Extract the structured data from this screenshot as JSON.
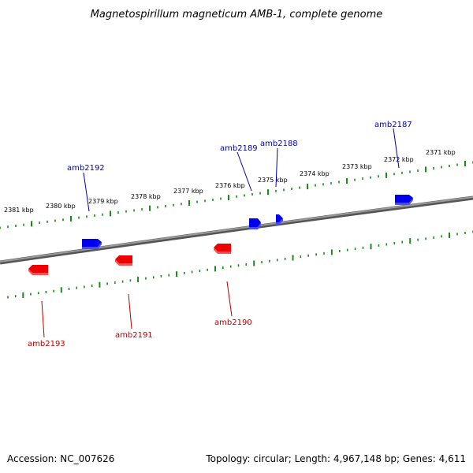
{
  "title": "Magnetospirillum magneticum AMB-1, complete genome",
  "footer": {
    "accession": "Accession: NC_007626",
    "summary": "Topology: circular; Length: 4,967,148 bp; Genes: 4,611"
  },
  "colors": {
    "text": "#000000",
    "backbone": "#808080",
    "tick": "#1a8a1a",
    "forward_gene": "#0000ee",
    "reverse_gene": "#ee0000",
    "forward_label": "#0000aa",
    "reverse_label": "#bb0000"
  },
  "scale_labels": [
    "2381 kbp",
    "2380 kbp",
    "2379 kbp",
    "2378 kbp",
    "2377 kbp",
    "2376 kbp",
    "2375 kbp",
    "2374 kbp",
    "2373 kbp",
    "2372 kbp",
    "2371 kbp"
  ],
  "genes": {
    "forward": [
      {
        "id": "amb2192",
        "strand": "forward"
      },
      {
        "id": "amb2189",
        "strand": "forward"
      },
      {
        "id": "amb2188",
        "strand": "forward"
      },
      {
        "id": "amb2187",
        "strand": "forward"
      }
    ],
    "reverse": [
      {
        "id": "amb2193",
        "strand": "reverse"
      },
      {
        "id": "amb2191",
        "strand": "reverse"
      },
      {
        "id": "amb2190",
        "strand": "reverse"
      }
    ]
  }
}
